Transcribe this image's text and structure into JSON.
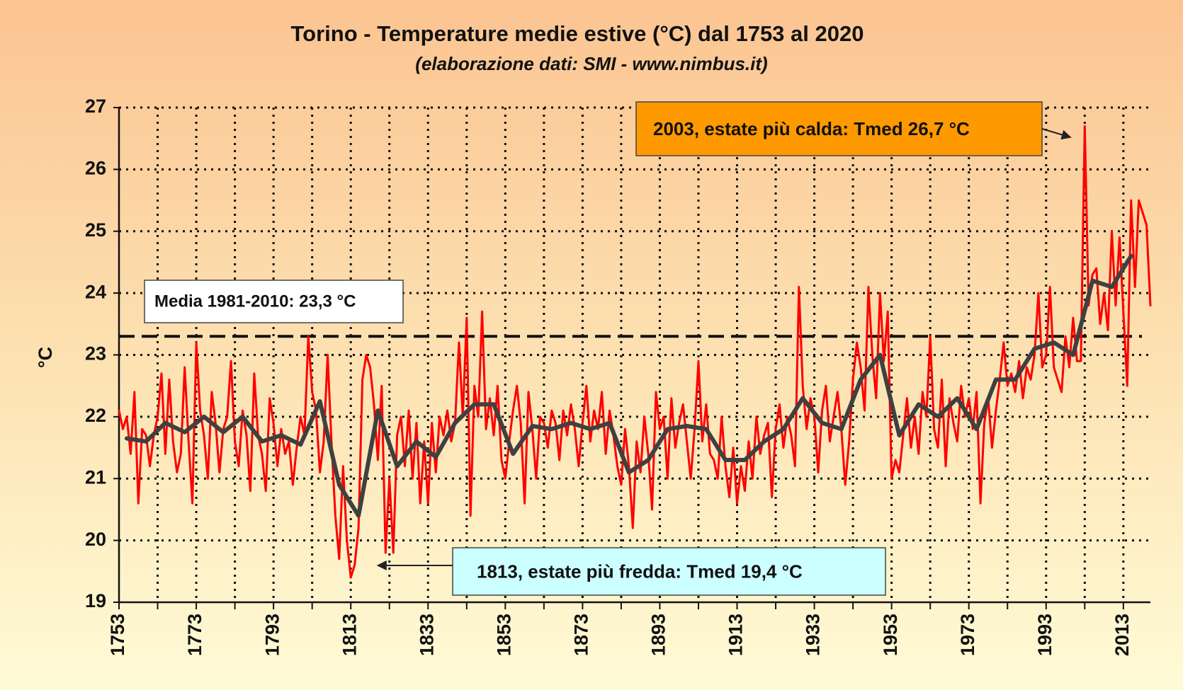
{
  "chart_data": {
    "type": "line",
    "title": "Torino - Temperature medie estive (°C) dal 1753 al 2020",
    "subtitle": "(elaborazione dati: SMI - www.nimbus.it)",
    "y_label": "°C",
    "x": [
      1753,
      1754,
      1755,
      1756,
      1757,
      1758,
      1759,
      1760,
      1761,
      1762,
      1763,
      1764,
      1765,
      1766,
      1767,
      1768,
      1769,
      1770,
      1771,
      1772,
      1773,
      1774,
      1775,
      1776,
      1777,
      1778,
      1779,
      1780,
      1781,
      1782,
      1783,
      1784,
      1785,
      1786,
      1787,
      1788,
      1789,
      1790,
      1791,
      1792,
      1793,
      1794,
      1795,
      1796,
      1797,
      1798,
      1799,
      1800,
      1801,
      1802,
      1803,
      1804,
      1805,
      1806,
      1807,
      1808,
      1809,
      1810,
      1811,
      1812,
      1813,
      1814,
      1815,
      1816,
      1817,
      1818,
      1819,
      1820,
      1821,
      1822,
      1823,
      1824,
      1825,
      1826,
      1827,
      1828,
      1829,
      1830,
      1831,
      1832,
      1833,
      1834,
      1835,
      1836,
      1837,
      1838,
      1839,
      1840,
      1841,
      1842,
      1843,
      1844,
      1845,
      1846,
      1847,
      1848,
      1849,
      1850,
      1851,
      1852,
      1853,
      1854,
      1855,
      1856,
      1857,
      1858,
      1859,
      1860,
      1861,
      1862,
      1863,
      1864,
      1865,
      1866,
      1867,
      1868,
      1869,
      1870,
      1871,
      1872,
      1873,
      1874,
      1875,
      1876,
      1877,
      1878,
      1879,
      1880,
      1881,
      1882,
      1883,
      1884,
      1885,
      1886,
      1887,
      1888,
      1889,
      1890,
      1891,
      1892,
      1893,
      1894,
      1895,
      1896,
      1897,
      1898,
      1899,
      1900,
      1901,
      1902,
      1903,
      1904,
      1905,
      1906,
      1907,
      1908,
      1909,
      1910,
      1911,
      1912,
      1913,
      1914,
      1915,
      1916,
      1917,
      1918,
      1919,
      1920,
      1921,
      1922,
      1923,
      1924,
      1925,
      1926,
      1927,
      1928,
      1929,
      1930,
      1931,
      1932,
      1933,
      1934,
      1935,
      1936,
      1937,
      1938,
      1939,
      1940,
      1941,
      1942,
      1943,
      1944,
      1945,
      1946,
      1947,
      1948,
      1949,
      1950,
      1951,
      1952,
      1953,
      1954,
      1955,
      1956,
      1957,
      1958,
      1959,
      1960,
      1961,
      1962,
      1963,
      1964,
      1965,
      1966,
      1967,
      1968,
      1969,
      1970,
      1971,
      1972,
      1973,
      1974,
      1975,
      1976,
      1977,
      1978,
      1979,
      1980,
      1981,
      1982,
      1983,
      1984,
      1985,
      1986,
      1987,
      1988,
      1989,
      1990,
      1991,
      1992,
      1993,
      1994,
      1995,
      1996,
      1997,
      1998,
      1999,
      2000,
      2001,
      2002,
      2003,
      2004,
      2005,
      2006,
      2007,
      2008,
      2009,
      2010,
      2011,
      2012,
      2013,
      2014,
      2015,
      2016,
      2017,
      2018,
      2019,
      2020
    ],
    "series": [
      {
        "color": "#ff0000",
        "width": 3,
        "values": [
          22.1,
          21.8,
          22.0,
          21.4,
          22.4,
          20.6,
          21.8,
          21.7,
          21.2,
          21.7,
          22.0,
          22.7,
          21.4,
          22.6,
          21.6,
          21.1,
          21.4,
          22.8,
          21.6,
          20.6,
          23.2,
          22.1,
          21.7,
          21.0,
          22.4,
          21.9,
          21.1,
          21.8,
          22.0,
          22.9,
          21.6,
          21.2,
          22.1,
          21.7,
          20.8,
          22.7,
          21.7,
          21.4,
          20.8,
          22.3,
          21.9,
          21.2,
          21.8,
          21.4,
          21.6,
          20.9,
          21.5,
          22.0,
          21.7,
          23.3,
          22.4,
          22.1,
          21.1,
          21.6,
          23.0,
          21.6,
          20.4,
          19.7,
          21.2,
          20.0,
          19.4,
          19.6,
          20.2,
          22.6,
          23.0,
          22.8,
          22.2,
          21.3,
          22.5,
          19.8,
          21.0,
          19.8,
          21.7,
          22.0,
          21.2,
          22.1,
          21.0,
          21.9,
          20.6,
          21.6,
          20.6,
          21.9,
          21.1,
          22.0,
          21.7,
          22.1,
          21.6,
          21.9,
          23.2,
          22.0,
          23.6,
          20.4,
          22.5,
          22.0,
          23.7,
          21.8,
          22.3,
          21.7,
          22.5,
          21.3,
          21.0,
          21.6,
          22.1,
          22.5,
          21.9,
          20.6,
          22.4,
          21.8,
          21.0,
          22.0,
          21.9,
          21.5,
          22.1,
          21.9,
          21.3,
          22.1,
          21.7,
          22.2,
          21.8,
          21.2,
          21.9,
          22.5,
          21.6,
          22.1,
          21.8,
          22.4,
          21.4,
          22.1,
          21.7,
          21.2,
          20.9,
          21.8,
          21.2,
          20.2,
          21.6,
          21.1,
          22.0,
          21.4,
          20.5,
          22.4,
          21.8,
          22.0,
          21.0,
          22.3,
          21.5,
          21.9,
          22.2,
          21.6,
          21.0,
          21.8,
          22.9,
          21.6,
          22.2,
          21.4,
          21.3,
          21.0,
          22.0,
          21.2,
          20.7,
          21.5,
          20.6,
          21.2,
          20.8,
          21.6,
          21.0,
          22.0,
          21.4,
          21.7,
          21.9,
          20.7,
          21.8,
          22.2,
          21.5,
          22.0,
          21.7,
          21.2,
          24.1,
          22.5,
          21.8,
          22.3,
          22.0,
          21.1,
          22.1,
          22.5,
          21.6,
          22.0,
          22.4,
          21.8,
          20.9,
          21.6,
          22.6,
          23.2,
          22.8,
          22.1,
          24.1,
          23.0,
          22.3,
          24.0,
          22.9,
          23.7,
          21.0,
          21.3,
          21.1,
          21.7,
          22.3,
          21.5,
          22.0,
          21.4,
          22.4,
          22.0,
          23.3,
          21.8,
          21.5,
          22.6,
          21.2,
          22.3,
          21.9,
          21.6,
          22.5,
          22.0,
          22.3,
          21.8,
          22.4,
          20.6,
          21.9,
          22.3,
          21.5,
          22.1,
          22.6,
          23.2,
          22.5,
          22.7,
          22.4,
          22.9,
          22.3,
          22.8,
          22.6,
          23.0,
          24.0,
          22.8,
          23.0,
          24.1,
          22.8,
          22.6,
          22.4,
          23.3,
          22.8,
          23.6,
          22.9,
          22.9,
          26.7,
          23.8,
          24.3,
          24.4,
          23.5,
          24.0,
          23.4,
          25.0,
          23.8,
          24.9,
          23.7,
          22.5,
          25.5,
          24.1,
          25.5,
          25.3,
          25.1,
          23.8
        ]
      },
      {
        "color": "#404040",
        "width": 6,
        "x": [
          1755,
          1760,
          1765,
          1770,
          1775,
          1780,
          1785,
          1790,
          1795,
          1800,
          1805,
          1810,
          1815,
          1820,
          1825,
          1830,
          1835,
          1840,
          1845,
          1850,
          1855,
          1860,
          1865,
          1870,
          1875,
          1880,
          1885,
          1890,
          1895,
          1900,
          1905,
          1910,
          1915,
          1920,
          1925,
          1930,
          1935,
          1940,
          1945,
          1950,
          1955,
          1960,
          1965,
          1970,
          1975,
          1980,
          1985,
          1990,
          1995,
          2000,
          2005,
          2010,
          2015
        ],
        "values": [
          21.65,
          21.6,
          21.9,
          21.75,
          22.0,
          21.75,
          22.0,
          21.6,
          21.7,
          21.55,
          22.25,
          20.9,
          20.4,
          22.1,
          21.2,
          21.6,
          21.35,
          21.9,
          22.2,
          22.2,
          21.4,
          21.85,
          21.8,
          21.9,
          21.8,
          21.9,
          21.1,
          21.3,
          21.8,
          21.85,
          21.8,
          21.3,
          21.3,
          21.6,
          21.8,
          22.3,
          21.9,
          21.8,
          22.6,
          23.0,
          21.7,
          22.2,
          22.0,
          22.3,
          21.8,
          22.6,
          22.6,
          23.1,
          23.2,
          23.0,
          24.2,
          24.1,
          24.6
        ]
      }
    ],
    "reference_line": {
      "value": 23.3,
      "label": "Media 1981-2010: 23,3 °C"
    },
    "annotations": [
      {
        "text": "2003, estate più calda: Tmed 26,7 °C",
        "x": 2003,
        "y": 26.7,
        "color": "#ff9900"
      },
      {
        "text": "1813, estate più fredda: Tmed 19,4 °C",
        "x": 1813,
        "y": 19.4,
        "color": "#ccffff"
      }
    ],
    "xlim": [
      1753,
      2020
    ],
    "ylim": [
      19,
      27
    ],
    "xticks": [
      1753,
      1773,
      1793,
      1813,
      1833,
      1853,
      1873,
      1893,
      1913,
      1933,
      1953,
      1973,
      1993,
      2013
    ],
    "xminor_ticks": [
      1763,
      1783,
      1803,
      1823,
      1843,
      1863,
      1883,
      1903,
      1923,
      1943,
      1963,
      1983,
      2003
    ],
    "yticks": [
      19,
      20,
      21,
      22,
      23,
      24,
      25,
      26,
      27
    ],
    "grid": true
  }
}
